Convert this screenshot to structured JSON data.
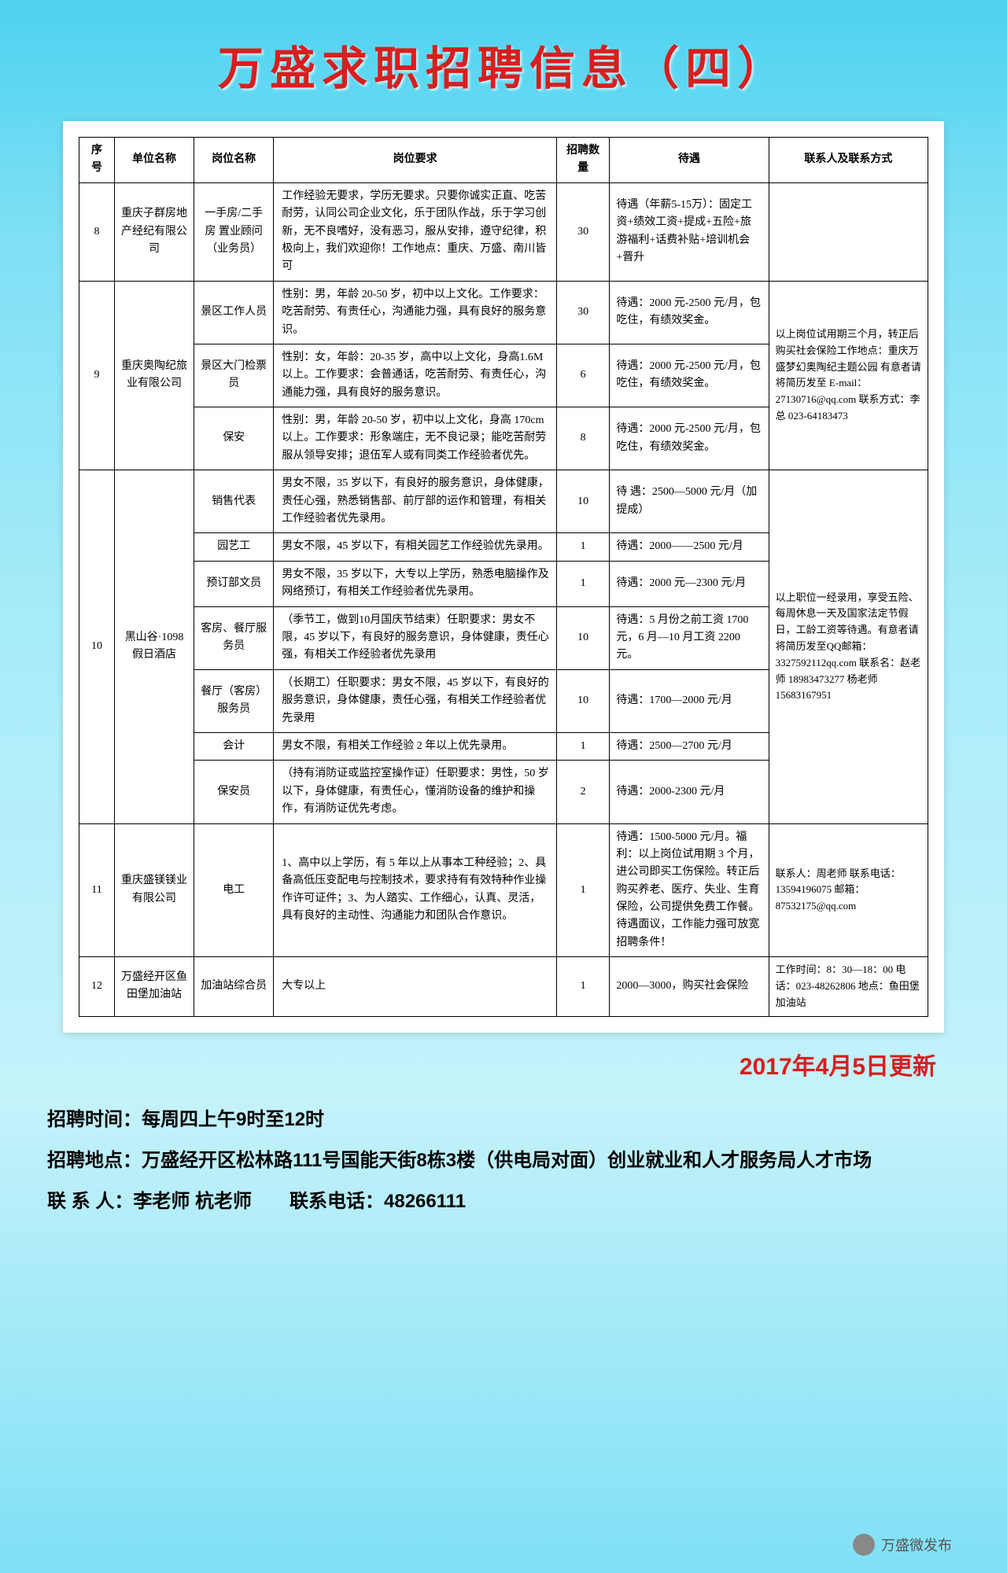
{
  "title": "万盛求职招聘信息（四）",
  "columns": [
    "序号",
    "单位名称",
    "岗位名称",
    "岗位要求",
    "招聘数量",
    "待遇",
    "联系人及联系方式"
  ],
  "rows": [
    {
      "no": "8",
      "company": "重庆子群房地产经纪有限公司",
      "positions": [
        {
          "name": "一手房/二手房 置业顾问（业务员）",
          "req": "工作经验无要求，学历无要求。只要你诚实正直、吃苦耐劳，认同公司企业文化，乐于团队作战，乐于学习创新，无不良嗜好，没有恶习，服从安排，遵守纪律，积极向上，我们欢迎你！工作地点：重庆、万盛、南川皆可",
          "count": "30",
          "treat": "待遇（年薪5-15万）：固定工资+绩效工资+提成+五险+旅游福利+话费补贴+培训机会+晋升"
        }
      ],
      "contact": ""
    },
    {
      "no": "9",
      "company": "重庆奥陶纪旅业有限公司",
      "positions": [
        {
          "name": "景区工作人员",
          "req": "性别：男，年龄 20-50 岁，初中以上文化。工作要求：吃苦耐劳、有责任心，沟通能力强，具有良好的服务意识。",
          "count": "30",
          "treat": "待遇：2000 元-2500 元/月，包吃住，有绩效奖金。"
        },
        {
          "name": "景区大门检票员",
          "req": "性别：女，年龄：20-35 岁，高中以上文化，身高1.6M以上。工作要求：会普通话，吃苦耐劳、有责任心，沟通能力强，具有良好的服务意识。",
          "count": "6",
          "treat": "待遇：2000 元-2500 元/月，包吃住，有绩效奖金。"
        },
        {
          "name": "保安",
          "req": "性别：男，年龄 20-50 岁，初中以上文化，身高 170cm 以上。工作要求：形象端庄，无不良记录；能吃苦耐劳服从领导安排；退伍军人或有同类工作经验者优先。",
          "count": "8",
          "treat": "待遇：2000 元-2500 元/月，包吃住，有绩效奖金。"
        }
      ],
      "contact": "以上岗位试用期三个月，转正后购买社会保险工作地点：重庆万盛梦幻奥陶纪主题公园 有意者请将简历发至 E-mail：27130716@qq.com 联系方式：李总 023-64183473"
    },
    {
      "no": "10",
      "company": "黑山谷·1098假日酒店",
      "positions": [
        {
          "name": "销售代表",
          "req": "男女不限，35 岁以下，有良好的服务意识，身体健康，责任心强，熟悉销售部、前厅部的运作和管理，有相关工作经验者优先录用。",
          "count": "10",
          "treat": "待 遇：2500—5000 元/月（加提成）"
        },
        {
          "name": "园艺工",
          "req": "男女不限，45 岁以下，有相关园艺工作经验优先录用。",
          "count": "1",
          "treat": "待遇：2000——2500 元/月"
        },
        {
          "name": "预订部文员",
          "req": "男女不限，35 岁以下，大专以上学历，熟悉电脑操作及网络预订，有相关工作经验者优先录用。",
          "count": "1",
          "treat": "待遇：2000 元—2300 元/月"
        },
        {
          "name": "客房、餐厅服务员",
          "req": "（季节工，做到10月国庆节结束）任职要求：男女不限，45 岁以下，有良好的服务意识，身体健康，责任心强，有相关工作经验者优先录用",
          "count": "10",
          "treat": "待遇：5 月份之前工资 1700 元，6 月—10 月工资 2200 元。"
        },
        {
          "name": "餐厅（客房）服务员",
          "req": "（长期工）任职要求：男女不限，45 岁以下，有良好的服务意识，身体健康，责任心强，有相关工作经验者优先录用",
          "count": "10",
          "treat": "待遇：1700—2000 元/月"
        },
        {
          "name": "会计",
          "req": "男女不限，有相关工作经验 2 年以上优先录用。",
          "count": "1",
          "treat": "待遇：2500—2700 元/月"
        },
        {
          "name": "保安员",
          "req": "（持有消防证或监控室操作证）任职要求：男性，50 岁以下，身体健康，有责任心，懂消防设备的维护和操作，有消防证优先考虑。",
          "count": "2",
          "treat": "待遇：2000-2300 元/月"
        }
      ],
      "contact": "以上职位一经录用，享受五险、每周休息一天及国家法定节假日，工龄工资等待遇。有意者请将简历发至QQ邮箱：3327592112qq.com 联系名：赵老师 18983473277 杨老师 15683167951"
    },
    {
      "no": "11",
      "company": "重庆盛镁镁业有限公司",
      "positions": [
        {
          "name": "电工",
          "req": "1、高中以上学历，有 5 年以上从事本工种经验；2、具备高低压变配电与控制技术，要求持有有效特种作业操作许可证件；3、为人踏实、工作细心，认真、灵活，具有良好的主动性、沟通能力和团队合作意识。",
          "count": "1",
          "treat": "待遇：1500-5000 元/月。福利：以上岗位试用期 3 个月，进公司即买工伤保险。转正后购买养老、医疗、失业、生育保险，公司提供免费工作餐。待遇面议，工作能力强可放宽招聘条件！"
        }
      ],
      "contact": "联系人：周老师 联系电话：13594196075 邮箱：87532175@qq.com"
    },
    {
      "no": "12",
      "company": "万盛经开区鱼田堡加油站",
      "positions": [
        {
          "name": "加油站综合员",
          "req": "大专以上",
          "count": "1",
          "treat": "2000—3000，购买社会保险"
        }
      ],
      "contact": "工作时间：8：30—18：00 电话：023-48262806 地点：鱼田堡加油站"
    }
  ],
  "updateDate": "2017年4月5日更新",
  "footer": {
    "time_label": "招聘时间：",
    "time_value": "每周四上午9时至12时",
    "addr_label": "招聘地点：",
    "addr_value": "万盛经开区松林路111号国能天街8栋3楼（供电局对面）创业就业和人才服务局人才市场",
    "contact_label": "联 系 人：",
    "contact_value": "李老师 杭老师　　联系电话：48266111"
  },
  "watermark": "万盛微发布"
}
